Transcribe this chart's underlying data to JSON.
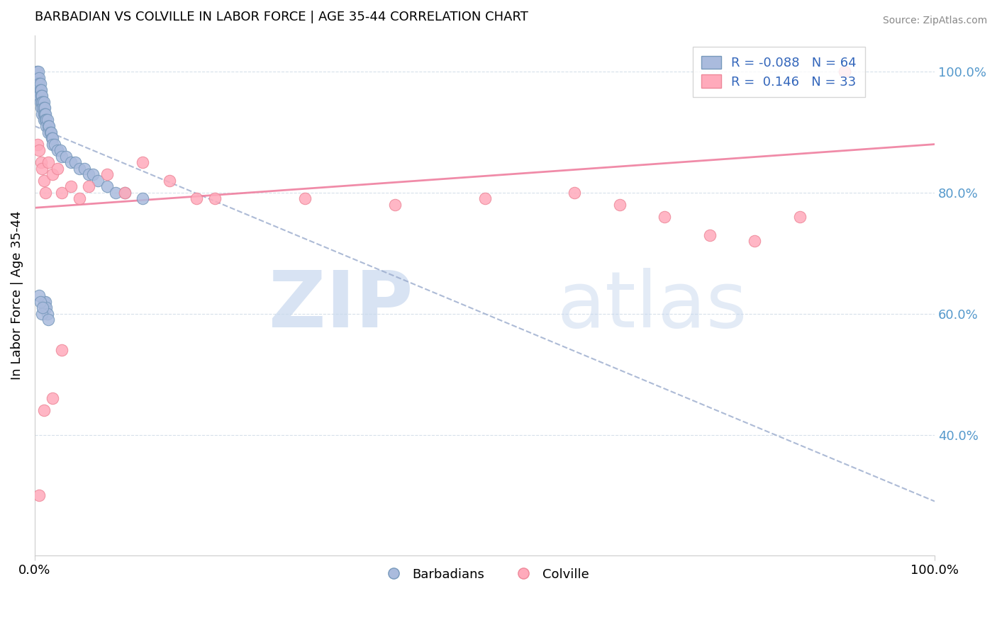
{
  "title": "BARBADIAN VS COLVILLE IN LABOR FORCE | AGE 35-44 CORRELATION CHART",
  "source": "Source: ZipAtlas.com",
  "ylabel": "In Labor Force | Age 35-44",
  "xlim": [
    0.0,
    1.0
  ],
  "ylim": [
    0.2,
    1.06
  ],
  "yticks": [
    0.4,
    0.6,
    0.8,
    1.0
  ],
  "ytick_labels": [
    "40.0%",
    "60.0%",
    "80.0%",
    "100.0%"
  ],
  "xticks": [
    0.0,
    1.0
  ],
  "xtick_labels": [
    "0.0%",
    "100.0%"
  ],
  "barbadians_R": -0.088,
  "barbadians_N": 64,
  "colville_R": 0.146,
  "colville_N": 33,
  "barbadians_color": "#AABBDD",
  "colville_color": "#FFAABB",
  "barbadians_edge": "#7799BB",
  "colville_edge": "#EE8899",
  "watermark_zip": "ZIP",
  "watermark_atlas": "atlas",
  "legend_labels": [
    "Barbadians",
    "Colville"
  ],
  "blue_trend_intercept": 0.91,
  "blue_trend_slope": -0.62,
  "pink_trend_intercept": 0.775,
  "pink_trend_slope": 0.105,
  "blue_x": [
    0.002,
    0.003,
    0.003,
    0.004,
    0.004,
    0.005,
    0.005,
    0.005,
    0.006,
    0.006,
    0.006,
    0.007,
    0.007,
    0.007,
    0.008,
    0.008,
    0.008,
    0.009,
    0.009,
    0.01,
    0.01,
    0.01,
    0.01,
    0.011,
    0.011,
    0.012,
    0.012,
    0.013,
    0.013,
    0.014,
    0.015,
    0.015,
    0.016,
    0.017,
    0.018,
    0.019,
    0.02,
    0.02,
    0.022,
    0.025,
    0.028,
    0.03,
    0.035,
    0.04,
    0.045,
    0.05,
    0.055,
    0.06,
    0.065,
    0.07,
    0.08,
    0.09,
    0.1,
    0.12,
    0.01,
    0.011,
    0.012,
    0.013,
    0.014,
    0.005,
    0.006,
    0.008,
    0.009,
    0.015
  ],
  "blue_y": [
    1.0,
    0.99,
    0.98,
    1.0,
    0.97,
    0.99,
    0.98,
    0.96,
    0.98,
    0.97,
    0.95,
    0.97,
    0.96,
    0.94,
    0.96,
    0.95,
    0.93,
    0.95,
    0.94,
    0.95,
    0.94,
    0.93,
    0.92,
    0.94,
    0.93,
    0.93,
    0.92,
    0.92,
    0.91,
    0.92,
    0.91,
    0.9,
    0.91,
    0.9,
    0.9,
    0.89,
    0.89,
    0.88,
    0.88,
    0.87,
    0.87,
    0.86,
    0.86,
    0.85,
    0.85,
    0.84,
    0.84,
    0.83,
    0.83,
    0.82,
    0.81,
    0.8,
    0.8,
    0.79,
    0.62,
    0.61,
    0.62,
    0.61,
    0.6,
    0.63,
    0.62,
    0.6,
    0.61,
    0.59
  ],
  "pink_x": [
    0.003,
    0.005,
    0.007,
    0.008,
    0.01,
    0.012,
    0.015,
    0.02,
    0.025,
    0.03,
    0.04,
    0.05,
    0.06,
    0.08,
    0.1,
    0.12,
    0.15,
    0.18,
    0.2,
    0.3,
    0.4,
    0.5,
    0.6,
    0.65,
    0.7,
    0.75,
    0.8,
    0.85,
    0.9,
    0.01,
    0.02,
    0.03,
    0.005
  ],
  "pink_y": [
    0.88,
    0.87,
    0.85,
    0.84,
    0.82,
    0.8,
    0.85,
    0.83,
    0.84,
    0.8,
    0.81,
    0.79,
    0.81,
    0.83,
    0.8,
    0.85,
    0.82,
    0.79,
    0.79,
    0.79,
    0.78,
    0.79,
    0.8,
    0.78,
    0.76,
    0.73,
    0.72,
    0.76,
    1.0,
    0.44,
    0.46,
    0.54,
    0.3
  ]
}
